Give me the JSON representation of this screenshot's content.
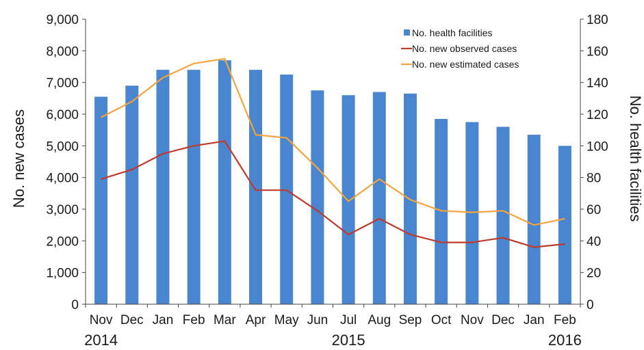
{
  "chart_data": {
    "type": "bar",
    "categories": [
      "Nov",
      "Dec",
      "Jan",
      "Feb",
      "Mar",
      "Apr",
      "May",
      "Jun",
      "Jul",
      "Aug",
      "Sep",
      "Oct",
      "Nov",
      "Dec",
      "Jan",
      "Feb"
    ],
    "year_labels": [
      {
        "label": "2014",
        "category_index": 0
      },
      {
        "label": "2015",
        "category_index": 8
      },
      {
        "label": "2016",
        "category_index": 15
      }
    ],
    "ylabel": "No. new cases",
    "y2label": "No. health facilities",
    "ylim": [
      0,
      9000
    ],
    "y2lim": [
      0,
      180
    ],
    "yticks": [
      "0",
      "1,000",
      "2,000",
      "3,000",
      "4,000",
      "5,000",
      "6,000",
      "7,000",
      "8,000",
      "9,000"
    ],
    "y2ticks": [
      "0",
      "20",
      "40",
      "60",
      "80",
      "100",
      "120",
      "140",
      "160",
      "180"
    ],
    "grid": false,
    "legend_position": "top-right",
    "series": [
      {
        "name": "No. health facilities",
        "type": "bar",
        "axis": "right",
        "color": "#4a86cf",
        "values": [
          131,
          138,
          148,
          148,
          154,
          148,
          145,
          135,
          132,
          134,
          133,
          117,
          115,
          112,
          107,
          100
        ]
      },
      {
        "name": "No. new observed cases",
        "type": "line",
        "axis": "left",
        "color": "#c0392b",
        "values": [
          3950,
          4250,
          4750,
          5000,
          5150,
          3600,
          3600,
          2950,
          2200,
          2700,
          2200,
          1950,
          1950,
          2100,
          1800,
          1900
        ]
      },
      {
        "name": "No. new estimated cases",
        "type": "line",
        "axis": "left",
        "color": "#f5a33c",
        "values": [
          5900,
          6400,
          7150,
          7600,
          7750,
          5350,
          5250,
          4300,
          3250,
          3950,
          3300,
          2950,
          2900,
          2950,
          2500,
          2700
        ]
      }
    ]
  }
}
